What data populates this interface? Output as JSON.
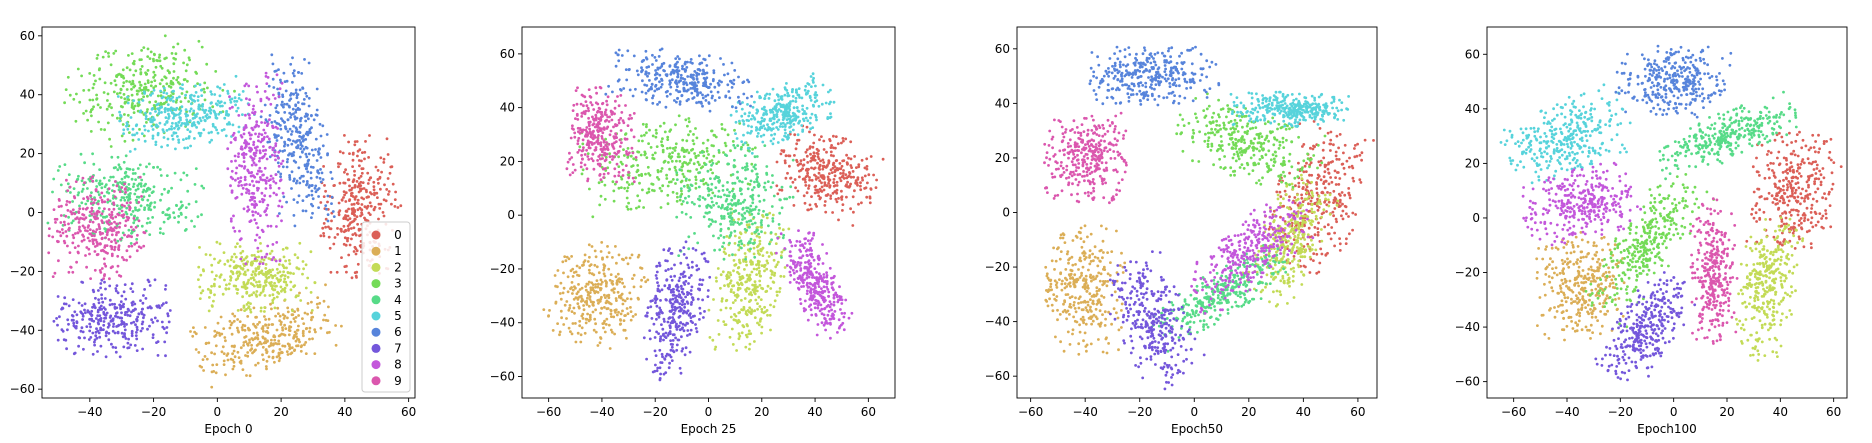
{
  "palette": {
    "0": "#db5f57",
    "1": "#dbae57",
    "2": "#c3db57",
    "3": "#74db57",
    "4": "#57db88",
    "5": "#57d3db",
    "6": "#5784db",
    "7": "#7457db",
    "8": "#c357db",
    "9": "#db57ae"
  },
  "legend": {
    "labels": [
      "0",
      "1",
      "2",
      "3",
      "4",
      "5",
      "6",
      "7",
      "8",
      "9"
    ],
    "placement": "lower-right of first panel"
  },
  "chart_data": [
    {
      "type": "scatter",
      "xlabel": "Epoch 0",
      "xlim": [
        -55,
        62
      ],
      "ylim": [
        -63,
        63
      ],
      "xticks": [
        -40,
        -20,
        0,
        20,
        40,
        60
      ],
      "yticks": [
        -60,
        -40,
        -20,
        0,
        20,
        40,
        60
      ],
      "clusters": [
        {
          "class": "0",
          "cx": 45,
          "cy": 2,
          "rx": 12,
          "ry": 22,
          "rot": 0
        },
        {
          "class": "1",
          "cx": 15,
          "cy": -42,
          "rx": 22,
          "ry": 10,
          "rot": 20
        },
        {
          "class": "2",
          "cx": 12,
          "cy": -22,
          "rx": 17,
          "ry": 11,
          "rot": 0
        },
        {
          "class": "3",
          "cx": -22,
          "cy": 42,
          "rx": 24,
          "ry": 15,
          "rot": 20
        },
        {
          "class": "4",
          "cx": -28,
          "cy": 5,
          "rx": 22,
          "ry": 14,
          "rot": -10
        },
        {
          "class": "5",
          "cx": -10,
          "cy": 33,
          "rx": 20,
          "ry": 10,
          "rot": 10
        },
        {
          "class": "6",
          "cx": 25,
          "cy": 25,
          "rx": 9,
          "ry": 27,
          "rot": 10
        },
        {
          "class": "7",
          "cx": -33,
          "cy": -36,
          "rx": 17,
          "ry": 12,
          "rot": 0
        },
        {
          "class": "8",
          "cx": 12,
          "cy": 15,
          "rx": 8,
          "ry": 30,
          "rot": 0
        },
        {
          "class": "9",
          "cx": -38,
          "cy": -5,
          "rx": 14,
          "ry": 16,
          "rot": 0
        }
      ]
    },
    {
      "type": "scatter",
      "xlabel": "Epoch 25",
      "xlim": [
        -70,
        70
      ],
      "ylim": [
        -68,
        70
      ],
      "xticks": [
        -60,
        -40,
        -20,
        0,
        20,
        40,
        60
      ],
      "yticks": [
        -60,
        -40,
        -20,
        0,
        20,
        40,
        60
      ],
      "clusters": [
        {
          "class": "0",
          "cx": 45,
          "cy": 15,
          "rx": 18,
          "ry": 14,
          "rot": -20
        },
        {
          "class": "1",
          "cx": -42,
          "cy": -30,
          "rx": 16,
          "ry": 18,
          "rot": -20
        },
        {
          "class": "2",
          "cx": 15,
          "cy": -25,
          "rx": 12,
          "ry": 25,
          "rot": -10
        },
        {
          "class": "3",
          "cx": -15,
          "cy": 20,
          "rx": 30,
          "ry": 15,
          "rot": 10
        },
        {
          "class": "4",
          "cx": 10,
          "cy": 5,
          "rx": 20,
          "ry": 20,
          "rot": 0
        },
        {
          "class": "5",
          "cx": 28,
          "cy": 38,
          "rx": 18,
          "ry": 10,
          "rot": 20
        },
        {
          "class": "6",
          "cx": -10,
          "cy": 50,
          "rx": 25,
          "ry": 10,
          "rot": -10
        },
        {
          "class": "7",
          "cx": -12,
          "cy": -35,
          "rx": 10,
          "ry": 25,
          "rot": -10
        },
        {
          "class": "8",
          "cx": 40,
          "cy": -25,
          "rx": 8,
          "ry": 20,
          "rot": 25
        },
        {
          "class": "9",
          "cx": -40,
          "cy": 30,
          "rx": 12,
          "ry": 16,
          "rot": 0
        }
      ]
    },
    {
      "type": "scatter",
      "xlabel": "Epoch50",
      "xlim": [
        -65,
        67
      ],
      "ylim": [
        -68,
        68
      ],
      "xticks": [
        -60,
        -40,
        -20,
        0,
        20,
        40,
        60
      ],
      "yticks": [
        -60,
        -40,
        -20,
        0,
        20,
        40,
        60
      ],
      "clusters": [
        {
          "class": "0",
          "cx": 45,
          "cy": 5,
          "rx": 15,
          "ry": 25,
          "rot": -20
        },
        {
          "class": "1",
          "cx": -40,
          "cy": -28,
          "rx": 14,
          "ry": 22,
          "rot": 0
        },
        {
          "class": "2",
          "cx": 35,
          "cy": -10,
          "rx": 10,
          "ry": 22,
          "rot": -25
        },
        {
          "class": "3",
          "cx": 20,
          "cy": 25,
          "rx": 25,
          "ry": 12,
          "rot": -20
        },
        {
          "class": "4",
          "cx": 10,
          "cy": -30,
          "rx": 25,
          "ry": 8,
          "rot": 30
        },
        {
          "class": "5",
          "cx": 35,
          "cy": 38,
          "rx": 20,
          "ry": 6,
          "rot": 0
        },
        {
          "class": "6",
          "cx": -15,
          "cy": 50,
          "rx": 22,
          "ry": 10,
          "rot": 0
        },
        {
          "class": "7",
          "cx": -15,
          "cy": -40,
          "rx": 12,
          "ry": 22,
          "rot": 25
        },
        {
          "class": "8",
          "cx": 20,
          "cy": -15,
          "rx": 25,
          "ry": 10,
          "rot": 40
        },
        {
          "class": "9",
          "cx": -40,
          "cy": 20,
          "rx": 14,
          "ry": 15,
          "rot": 0
        }
      ]
    },
    {
      "type": "scatter",
      "xlabel": "Epoch100",
      "xlim": [
        -70,
        65
      ],
      "ylim": [
        -66,
        70
      ],
      "xticks": [
        -60,
        -40,
        -20,
        0,
        20,
        40,
        60
      ],
      "yticks": [
        -60,
        -40,
        -20,
        0,
        20,
        40,
        60
      ],
      "clusters": [
        {
          "class": "0",
          "cx": 45,
          "cy": 10,
          "rx": 15,
          "ry": 20,
          "rot": -10
        },
        {
          "class": "1",
          "cx": -35,
          "cy": -25,
          "rx": 15,
          "ry": 18,
          "rot": 0
        },
        {
          "class": "2",
          "cx": 35,
          "cy": -25,
          "rx": 10,
          "ry": 25,
          "rot": -10
        },
        {
          "class": "3",
          "cx": -10,
          "cy": -10,
          "rx": 10,
          "ry": 28,
          "rot": -35
        },
        {
          "class": "4",
          "cx": 20,
          "cy": 30,
          "rx": 25,
          "ry": 8,
          "rot": 20
        },
        {
          "class": "5",
          "cx": -40,
          "cy": 30,
          "rx": 22,
          "ry": 12,
          "rot": 20
        },
        {
          "class": "6",
          "cx": 0,
          "cy": 50,
          "rx": 20,
          "ry": 12,
          "rot": 0
        },
        {
          "class": "7",
          "cx": -10,
          "cy": -40,
          "rx": 10,
          "ry": 20,
          "rot": -35
        },
        {
          "class": "8",
          "cx": -35,
          "cy": 5,
          "rx": 20,
          "ry": 12,
          "rot": 15
        },
        {
          "class": "9",
          "cx": 15,
          "cy": -20,
          "rx": 8,
          "ry": 25,
          "rot": 0
        }
      ]
    }
  ]
}
